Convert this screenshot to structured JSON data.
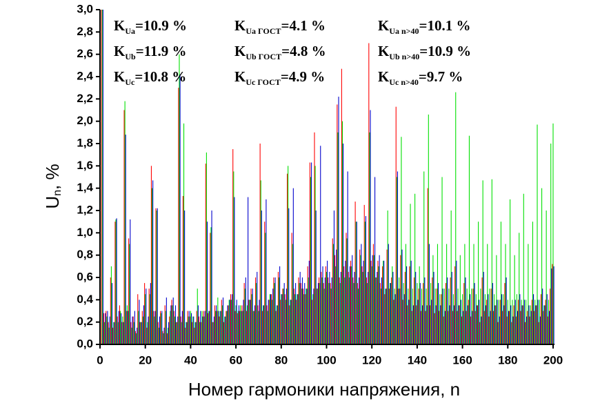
{
  "chart_data": {
    "type": "bar",
    "x_label": "Номер гармоники напряжения, n",
    "y_label": {
      "main": "U",
      "sub": "n",
      "rest": ", %"
    },
    "annotations": [
      {
        "k": "K",
        "sub": "Ua",
        "text": "=10.9 %"
      },
      {
        "k": "K",
        "sub": "Ub",
        "text": "=11.9 %"
      },
      {
        "k": "K",
        "sub": "Uc",
        "text": "=10.8 %"
      },
      {
        "k": "K",
        "sub": "Ua ГОСТ",
        "text": "=4.1 %"
      },
      {
        "k": "K",
        "sub": "Ub ГОСТ",
        "text": "=4.8 %"
      },
      {
        "k": "K",
        "sub": "Uc ГОСТ",
        "text": "=4.9 %"
      },
      {
        "k": "K",
        "sub": "Ua n>40",
        "text": "=10.1 %"
      },
      {
        "k": "K",
        "sub": "Ub n>40",
        "text": "=10.9 %"
      },
      {
        "k": "K",
        "sub": "Uc n>40",
        "text": "=9.7 %"
      }
    ],
    "xlim": [
      0,
      200
    ],
    "xticks": [
      0,
      20,
      40,
      60,
      80,
      100,
      120,
      140,
      160,
      180,
      200
    ],
    "ylim": [
      0,
      3.0
    ],
    "yticks": [
      {
        "value": 0,
        "label": "0,0"
      },
      {
        "value": 0.2,
        "label": "0,2"
      },
      {
        "value": 0.4,
        "label": "0,4"
      },
      {
        "value": 0.6,
        "label": "0,6"
      },
      {
        "value": 0.8,
        "label": "0,8"
      },
      {
        "value": 1.0,
        "label": "1,0"
      },
      {
        "value": 1.2,
        "label": "1,2"
      },
      {
        "value": 1.4,
        "label": "1,4"
      },
      {
        "value": 1.6,
        "label": "1,6"
      },
      {
        "value": 1.8,
        "label": "1,8"
      },
      {
        "value": 2.0,
        "label": "2,0"
      },
      {
        "value": 2.2,
        "label": "2,2"
      },
      {
        "value": 2.4,
        "label": "2,4"
      },
      {
        "value": 2.6,
        "label": "2,6"
      },
      {
        "value": 2.8,
        "label": "2,8"
      },
      {
        "value": 3.0,
        "label": "3,0"
      }
    ],
    "x": [
      1,
      2,
      3,
      4,
      5,
      6,
      7,
      8,
      9,
      10,
      11,
      12,
      13,
      14,
      15,
      16,
      17,
      18,
      19,
      20,
      21,
      22,
      23,
      24,
      25,
      26,
      27,
      28,
      29,
      30,
      31,
      32,
      33,
      34,
      35,
      36,
      37,
      38,
      39,
      40,
      41,
      42,
      43,
      44,
      45,
      46,
      47,
      48,
      49,
      50,
      51,
      52,
      53,
      54,
      55,
      56,
      57,
      58,
      59,
      60,
      61,
      62,
      63,
      64,
      65,
      66,
      67,
      68,
      69,
      70,
      71,
      72,
      73,
      74,
      75,
      76,
      77,
      78,
      79,
      80,
      81,
      82,
      83,
      84,
      85,
      86,
      87,
      88,
      89,
      90,
      91,
      92,
      93,
      94,
      95,
      96,
      97,
      98,
      99,
      100,
      101,
      102,
      103,
      104,
      105,
      106,
      107,
      108,
      109,
      110,
      111,
      112,
      113,
      114,
      115,
      116,
      117,
      118,
      119,
      120,
      121,
      122,
      123,
      124,
      125,
      126,
      127,
      128,
      129,
      130,
      131,
      132,
      133,
      134,
      135,
      136,
      137,
      138,
      139,
      140,
      141,
      142,
      143,
      144,
      145,
      146,
      147,
      148,
      149,
      150,
      151,
      152,
      153,
      154,
      155,
      156,
      157,
      158,
      159,
      160,
      161,
      162,
      163,
      164,
      165,
      166,
      167,
      168,
      169,
      170,
      171,
      172,
      173,
      174,
      175,
      176,
      177,
      178,
      179,
      180,
      181,
      182,
      183,
      184,
      185,
      186,
      187,
      188,
      189,
      190,
      191,
      192,
      193,
      194,
      195,
      196,
      197,
      198,
      199,
      200
    ],
    "series": [
      {
        "color": "#ff0000",
        "values": [
          3.0,
          0.28,
          0.3,
          0.2,
          0.6,
          0.15,
          1.1,
          0.25,
          0.35,
          0.2,
          2.1,
          0.3,
          0.95,
          0.2,
          0.25,
          0.12,
          0.45,
          0.2,
          0.3,
          0.55,
          0.15,
          0.5,
          1.6,
          0.3,
          1.22,
          0.2,
          0.3,
          0.12,
          0.35,
          0.1,
          0.25,
          0.4,
          0.3,
          0.2,
          2.3,
          0.25,
          1.33,
          0.15,
          0.3,
          0.25,
          0.2,
          0.15,
          0.3,
          0.25,
          0.2,
          0.3,
          1.62,
          0.28,
          1.0,
          0.2,
          0.35,
          0.3,
          0.25,
          0.4,
          0.2,
          0.3,
          0.35,
          0.45,
          1.75,
          0.3,
          0.28,
          0.3,
          0.35,
          0.55,
          0.3,
          0.4,
          0.5,
          0.3,
          0.6,
          0.35,
          1.8,
          0.3,
          1.1,
          0.35,
          0.4,
          0.45,
          0.6,
          0.3,
          0.65,
          0.4,
          0.5,
          0.45,
          1.53,
          0.35,
          1.0,
          0.5,
          0.4,
          0.6,
          0.55,
          0.5,
          0.45,
          0.7,
          1.63,
          0.4,
          1.9,
          0.5,
          0.6,
          0.65,
          0.55,
          0.7,
          0.6,
          0.55,
          0.95,
          0.8,
          2.15,
          0.6,
          2.47,
          0.7,
          1.0,
          0.65,
          0.75,
          0.6,
          1.28,
          0.55,
          0.85,
          0.7,
          1.25,
          0.6,
          2.7,
          0.75,
          0.9,
          0.6,
          0.75,
          0.55,
          0.7,
          0.45,
          0.85,
          0.5,
          0.6,
          0.4,
          2.13,
          0.5,
          0.8,
          0.4,
          0.65,
          0.35,
          0.7,
          0.3,
          0.6,
          0.35,
          0.5,
          0.3,
          0.55,
          0.3,
          1.4,
          0.35,
          0.6,
          0.28,
          0.5,
          0.3,
          0.45,
          0.25,
          0.55,
          0.3,
          0.6,
          0.3,
          0.7,
          0.3,
          0.35,
          0.25,
          0.55,
          0.3,
          0.4,
          0.25,
          0.5,
          0.3,
          0.35,
          0.2,
          0.6,
          0.3,
          0.4,
          0.25,
          0.5,
          0.3,
          0.35,
          0.2,
          0.4,
          0.3,
          0.55,
          0.25,
          0.3,
          0.2,
          0.35,
          0.25,
          0.4,
          0.3,
          0.35,
          0.2,
          0.3,
          0.25,
          0.4,
          0.3,
          0.35,
          0.2,
          0.45,
          0.3,
          0.4,
          0.25,
          0.5,
          0.72
        ]
      },
      {
        "color": "#00e000",
        "values": [
          3.0,
          0.2,
          0.25,
          0.15,
          0.7,
          0.2,
          1.12,
          0.2,
          0.3,
          0.25,
          2.18,
          0.35,
          0.9,
          0.15,
          0.2,
          0.1,
          0.3,
          0.2,
          0.25,
          0.45,
          0.2,
          0.45,
          1.4,
          0.25,
          1.2,
          0.15,
          0.28,
          0.1,
          0.3,
          0.15,
          0.3,
          0.35,
          0.25,
          0.2,
          2.6,
          0.2,
          1.98,
          0.2,
          0.25,
          0.3,
          0.25,
          0.2,
          0.5,
          0.2,
          0.3,
          0.25,
          1.72,
          0.3,
          1.05,
          0.2,
          0.3,
          0.42,
          0.3,
          0.35,
          0.25,
          0.3,
          0.4,
          0.4,
          1.55,
          0.35,
          0.3,
          0.35,
          0.3,
          0.5,
          0.35,
          0.4,
          0.45,
          0.3,
          0.55,
          0.3,
          1.47,
          0.35,
          1.0,
          0.3,
          0.45,
          0.4,
          0.55,
          0.35,
          0.6,
          0.45,
          0.5,
          0.4,
          1.6,
          0.4,
          0.9,
          0.45,
          0.45,
          0.55,
          0.5,
          0.45,
          0.5,
          0.6,
          1.5,
          0.45,
          1.6,
          0.5,
          0.55,
          0.6,
          0.5,
          0.65,
          0.55,
          0.5,
          0.9,
          0.7,
          1.9,
          0.55,
          2.0,
          0.6,
          0.95,
          0.6,
          0.7,
          0.55,
          1.1,
          0.5,
          0.8,
          0.65,
          1.1,
          0.55,
          1.9,
          0.7,
          0.8,
          0.6,
          0.7,
          0.5,
          0.75,
          0.5,
          1.2,
          0.55,
          0.7,
          0.5,
          1.5,
          0.6,
          1.86,
          0.55,
          0.9,
          0.5,
          1.26,
          0.5,
          1.35,
          0.55,
          0.7,
          0.5,
          1.55,
          0.5,
          2.06,
          0.55,
          0.8,
          0.5,
          0.9,
          0.45,
          1.5,
          0.5,
          0.9,
          0.5,
          1.2,
          0.45,
          2.26,
          0.5,
          0.8,
          0.45,
          0.9,
          0.5,
          1.87,
          0.5,
          0.9,
          0.45,
          1.1,
          0.5,
          1.47,
          0.45,
          0.9,
          0.5,
          1.48,
          0.45,
          0.8,
          0.4,
          1.1,
          0.45,
          0.9,
          0.4,
          1.3,
          0.4,
          0.8,
          0.45,
          1.0,
          0.4,
          1.35,
          0.4,
          0.9,
          0.35,
          1.1,
          0.4,
          1.97,
          0.4,
          1.4,
          0.35,
          1.2,
          0.4,
          1.8,
          1.98
        ]
      },
      {
        "color": "#0000cc",
        "values": [
          3.0,
          0.28,
          0.3,
          0.25,
          0.55,
          0.2,
          1.13,
          0.3,
          0.28,
          0.2,
          1.88,
          0.3,
          1.12,
          0.25,
          0.3,
          0.15,
          0.4,
          0.2,
          0.35,
          0.5,
          0.25,
          0.55,
          1.47,
          0.3,
          1.22,
          0.25,
          0.3,
          0.15,
          0.42,
          0.2,
          0.35,
          0.42,
          0.35,
          0.25,
          2.42,
          0.3,
          1.2,
          0.2,
          0.3,
          0.28,
          0.25,
          0.2,
          0.35,
          0.3,
          0.25,
          0.3,
          1.1,
          0.3,
          1.2,
          0.25,
          0.35,
          0.3,
          0.3,
          0.42,
          0.25,
          0.35,
          0.4,
          0.45,
          1.32,
          0.4,
          0.35,
          0.3,
          0.4,
          0.6,
          1.32,
          0.4,
          0.5,
          0.35,
          0.65,
          0.4,
          1.2,
          0.35,
          1.3,
          0.4,
          0.45,
          0.5,
          0.6,
          0.35,
          0.7,
          0.45,
          0.55,
          0.5,
          1.22,
          0.4,
          1.4,
          0.55,
          0.45,
          0.65,
          0.6,
          0.55,
          0.5,
          0.75,
          1.63,
          0.5,
          1.2,
          0.55,
          1.78,
          0.7,
          0.6,
          0.75,
          0.65,
          0.6,
          1.2,
          0.85,
          2.22,
          0.65,
          1.8,
          0.75,
          1.55,
          0.7,
          0.8,
          0.65,
          1.1,
          0.6,
          0.9,
          0.75,
          1.15,
          0.65,
          2.1,
          0.8,
          1.5,
          0.65,
          0.8,
          0.6,
          0.75,
          0.5,
          0.9,
          0.55,
          0.65,
          0.45,
          1.55,
          0.5,
          0.85,
          0.45,
          0.7,
          0.4,
          0.75,
          0.35,
          0.65,
          0.4,
          0.55,
          0.35,
          0.6,
          0.35,
          0.9,
          0.4,
          0.65,
          0.35,
          0.55,
          0.35,
          0.5,
          0.3,
          0.6,
          0.35,
          0.65,
          0.35,
          0.75,
          0.35,
          0.4,
          0.3,
          0.6,
          0.35,
          0.45,
          0.3,
          0.55,
          0.35,
          0.4,
          0.25,
          0.65,
          0.35,
          0.45,
          0.3,
          0.55,
          0.35,
          0.4,
          0.25,
          0.45,
          0.35,
          0.6,
          0.3,
          0.35,
          0.25,
          0.4,
          0.3,
          0.45,
          0.35,
          0.4,
          0.25,
          0.35,
          0.3,
          0.45,
          0.35,
          0.4,
          0.25,
          0.5,
          0.35,
          0.45,
          0.3,
          0.68,
          0.7
        ]
      }
    ]
  }
}
